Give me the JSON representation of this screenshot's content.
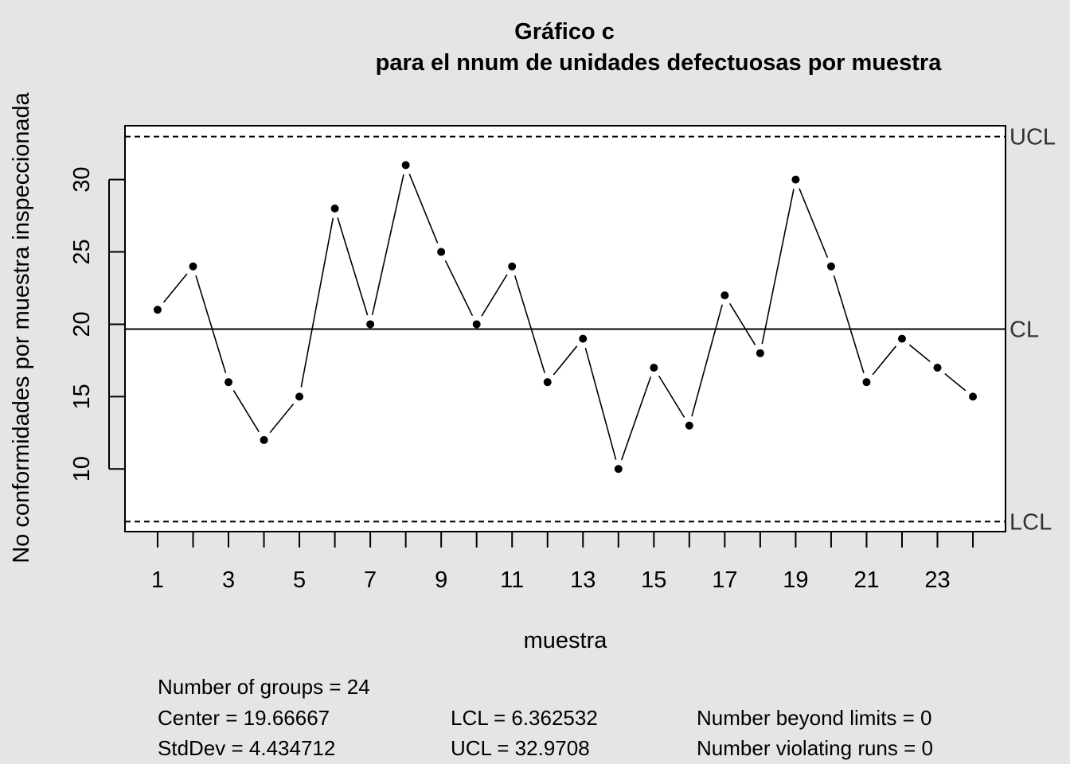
{
  "chart_data": {
    "type": "line",
    "title_line1": "Gráfico c",
    "title_line2": "para el nnum de unidades defectuosas por muestra",
    "xlabel": "muestra",
    "ylabel": "No conformidades por muestra inspeccionada",
    "x": [
      1,
      2,
      3,
      4,
      5,
      6,
      7,
      8,
      9,
      10,
      11,
      12,
      13,
      14,
      15,
      16,
      17,
      18,
      19,
      20,
      21,
      22,
      23,
      24
    ],
    "values": [
      21,
      24,
      16,
      12,
      15,
      28,
      20,
      31,
      25,
      20,
      24,
      16,
      19,
      10,
      17,
      13,
      22,
      18,
      30,
      24,
      16,
      19,
      17,
      15
    ],
    "x_tick_labels": [
      "1",
      "3",
      "5",
      "7",
      "9",
      "11",
      "13",
      "15",
      "17",
      "19",
      "21",
      "23"
    ],
    "y_tick_labels": [
      "10",
      "15",
      "20",
      "25",
      "30"
    ],
    "ylim": [
      5.67,
      33.72
    ],
    "xlim": [
      0.08,
      24.92
    ],
    "limits": {
      "ucl": 32.9708,
      "cl": 19.66667,
      "lcl": 6.362532,
      "ucl_label": "UCL",
      "cl_label": "CL",
      "lcl_label": "LCL"
    }
  },
  "stats": {
    "groups": "Number of groups = 24",
    "center": "Center = 19.66667",
    "stddev": "StdDev = 4.434712",
    "lcl": "LCL = 6.362532",
    "ucl": "UCL = 32.9708",
    "beyond": "Number beyond limits = 0",
    "runs": "Number violating runs = 0"
  }
}
